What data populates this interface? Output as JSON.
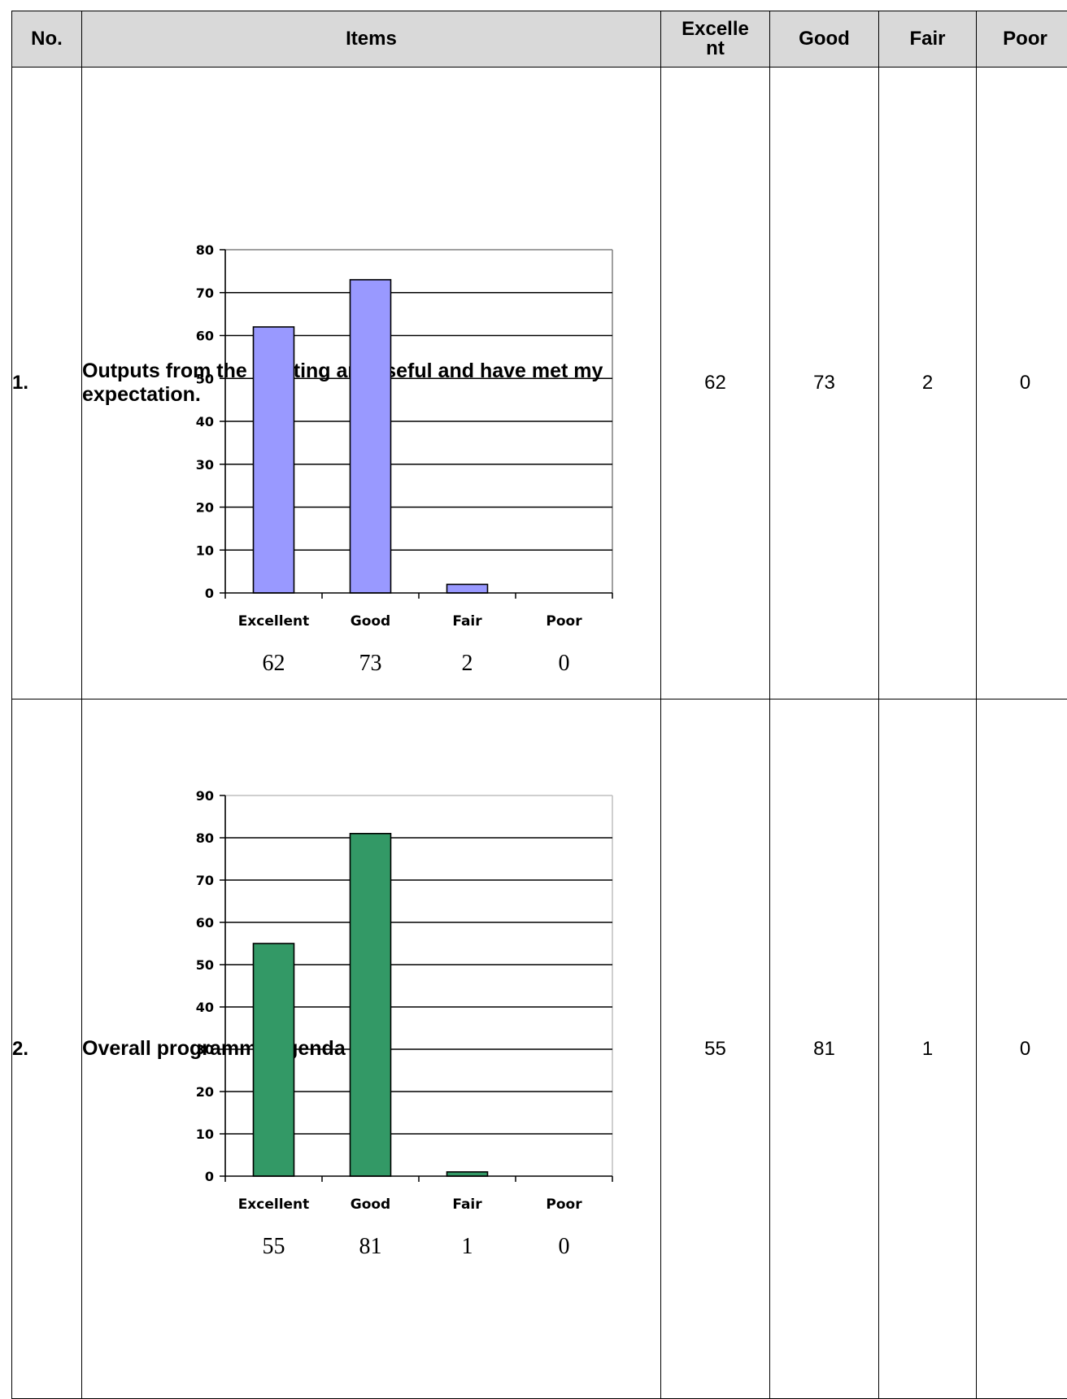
{
  "table": {
    "headers": {
      "no": "No.",
      "items": "Items",
      "excellent_line1": "Excelle",
      "excellent_line2": "nt",
      "good": "Good",
      "fair": "Fair",
      "poor": "Poor"
    },
    "rows": [
      {
        "no": "1.",
        "title": "Outputs from the meeting are useful and have met my expectation.",
        "excellent": "62",
        "good": "73",
        "fair": "2",
        "poor": "0"
      },
      {
        "no": "2.",
        "title": "Overall programme/agenda",
        "excellent": "55",
        "good": "81",
        "fair": "1",
        "poor": "0"
      }
    ]
  },
  "chart_data": [
    {
      "type": "bar",
      "categories": [
        "Excellent",
        "Good",
        "Fair",
        "Poor"
      ],
      "values": [
        62,
        73,
        2,
        0
      ],
      "value_labels": [
        "62",
        "73",
        "2",
        "0"
      ],
      "ylim": [
        0,
        80
      ],
      "yticks": [
        0,
        10,
        20,
        30,
        40,
        50,
        60,
        70,
        80
      ],
      "grid": true,
      "bar_color": "#9999ff",
      "title": "",
      "xlabel": "",
      "ylabel": ""
    },
    {
      "type": "bar",
      "categories": [
        "Excellent",
        "Good",
        "Fair",
        "Poor"
      ],
      "values": [
        55,
        81,
        1,
        0
      ],
      "value_labels": [
        "55",
        "81",
        "1",
        "0"
      ],
      "ylim": [
        0,
        90
      ],
      "yticks": [
        0,
        10,
        20,
        30,
        40,
        50,
        60,
        70,
        80,
        90
      ],
      "grid": true,
      "bar_color": "#339966",
      "title": "",
      "xlabel": "",
      "ylabel": ""
    }
  ]
}
